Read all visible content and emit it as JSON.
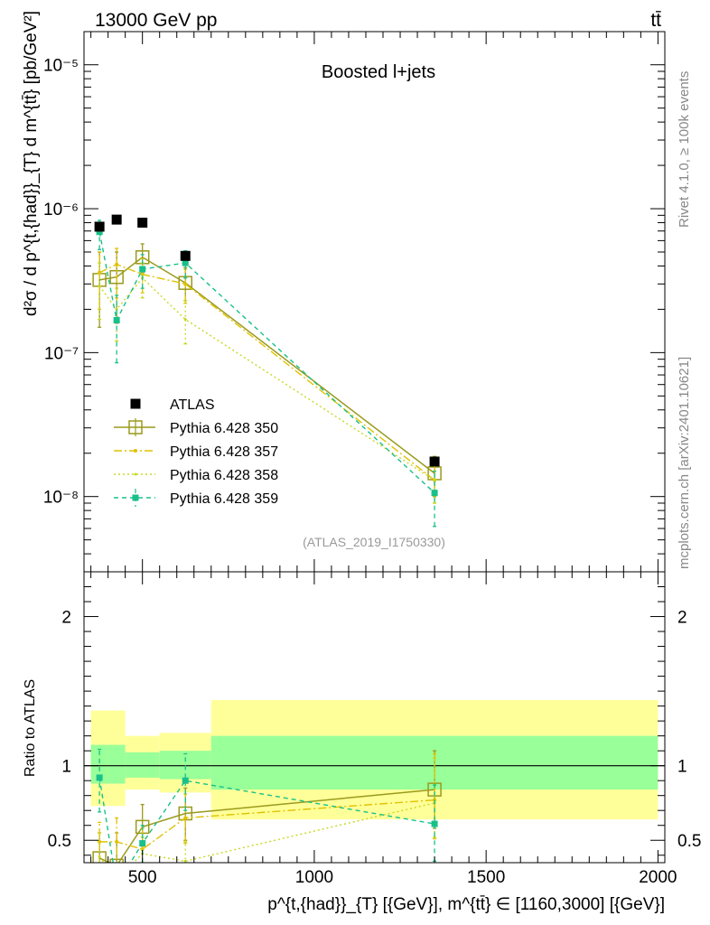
{
  "header": {
    "left": "13000 GeV pp",
    "right": "tt̄"
  },
  "side_labels": {
    "rivet": "Rivet 4.1.0, ≥ 100k events",
    "mcplots": "mcplots.cern.ch [arXiv:2401.10621]"
  },
  "colors": {
    "atlas": "#000000",
    "p350": "#9a9a1e",
    "p357": "#e0c200",
    "p358": "#c8d820",
    "p359": "#18c08a",
    "band_inner": "#99ff99",
    "band_outer": "#ffff99"
  },
  "chart_data": [
    {
      "type": "line",
      "title": "Boosted l+jets",
      "watermark": "(ATLAS_2019_I1750330)",
      "ylabel": "d²σ / d p^{t,{had}}_{T} d m^{tt̄} [pb/GeV²]",
      "yscale": "log",
      "ylim": [
        3e-09,
        1.7e-05
      ],
      "xlim": [
        330,
        2020
      ],
      "y_ticks": [
        {
          "value": 1e-08,
          "label": "10⁻⁸"
        },
        {
          "value": 1e-07,
          "label": "10⁻⁷"
        },
        {
          "value": 1e-06,
          "label": "10⁻⁶"
        },
        {
          "value": 1e-05,
          "label": "10⁻⁵"
        }
      ],
      "legend_position": "bottom-left",
      "series": [
        {
          "name": "ATLAS",
          "style": "data",
          "x": [
            375,
            425,
            500,
            625,
            1350
          ],
          "y": [
            7.5e-07,
            8.4e-07,
            8e-07,
            4.7e-07,
            1.75e-08
          ]
        },
        {
          "name": "Pythia 6.428 350",
          "style": "solid-open-square",
          "x": [
            375,
            425,
            500,
            625,
            1350
          ],
          "y": [
            3.2e-07,
            3.35e-07,
            4.6e-07,
            3.05e-07,
            1.45e-08
          ],
          "yerr_low": [
            1.5e-07,
            1.6e-07,
            3.6e-07,
            2.3e-07,
            1e-08
          ],
          "yerr_high": [
            5e-07,
            5e-07,
            5.7e-07,
            3.9e-07,
            1.9e-08
          ]
        },
        {
          "name": "Pythia 6.428 357",
          "style": "dashdot",
          "x": [
            375,
            425,
            500,
            625,
            1350
          ],
          "y": [
            3.6e-07,
            4.1e-07,
            3.5e-07,
            3e-07,
            1.3e-08
          ],
          "yerr_low": [
            2e-07,
            2.4e-07,
            2.6e-07,
            2.2e-07,
            9e-09
          ],
          "yerr_high": [
            5e-07,
            5.3e-07,
            4.5e-07,
            3.8e-07,
            1.8e-08
          ]
        },
        {
          "name": "Pythia 6.428 358",
          "style": "dotted",
          "x": [
            375,
            425,
            500,
            625,
            1350
          ],
          "y": [
            2.9e-07,
            2e-07,
            3.3e-07,
            1.7e-07,
            1.3e-08
          ],
          "yerr_low": [
            1.7e-07,
            1.2e-07,
            2.4e-07,
            1.15e-07,
            9e-09
          ],
          "yerr_high": [
            4.2e-07,
            2.8e-07,
            4.2e-07,
            2.3e-07,
            1.8e-08
          ]
        },
        {
          "name": "Pythia 6.428 359",
          "style": "dashed-filled-square",
          "x": [
            375,
            425,
            500,
            625,
            1350
          ],
          "y": [
            6.9e-07,
            1.68e-07,
            3.8e-07,
            4.2e-07,
            1.06e-08
          ],
          "yerr_low": [
            5.2e-07,
            8.5e-08,
            2.8e-07,
            3.3e-07,
            6.2e-09
          ],
          "yerr_high": [
            8.3e-07,
            2.5e-07,
            4.8e-07,
            5.1e-07,
            1.5e-08
          ]
        }
      ]
    },
    {
      "type": "line",
      "ylabel": "Ratio to ATLAS",
      "xlabel": "p^{t,{had}}_{T} [{GeV}], m^{tt̄} ∈ [1160,3000] [{GeV}]",
      "xlim": [
        330,
        2020
      ],
      "ylim": [
        0.35,
        2.3
      ],
      "x_ticks": [
        {
          "value": 500,
          "label": "500"
        },
        {
          "value": 1000,
          "label": "1000"
        },
        {
          "value": 1500,
          "label": "1500"
        },
        {
          "value": 2000,
          "label": "2000"
        }
      ],
      "y_ticks": [
        {
          "value": 0.5,
          "label": "0.5"
        },
        {
          "value": 1,
          "label": "1"
        },
        {
          "value": 2,
          "label": "2"
        }
      ],
      "uncertainty_bands": [
        {
          "x0": 350,
          "x1": 400,
          "inner": [
            0.88,
            1.14
          ],
          "outer": [
            0.73,
            1.37
          ]
        },
        {
          "x0": 400,
          "x1": 450,
          "inner": [
            0.88,
            1.14
          ],
          "outer": [
            0.73,
            1.37
          ]
        },
        {
          "x0": 450,
          "x1": 550,
          "inner": [
            0.92,
            1.09
          ],
          "outer": [
            0.84,
            1.2
          ]
        },
        {
          "x0": 550,
          "x1": 700,
          "inner": [
            0.91,
            1.1
          ],
          "outer": [
            0.82,
            1.22
          ]
        },
        {
          "x0": 700,
          "x1": 2000,
          "inner": [
            0.84,
            1.2
          ],
          "outer": [
            0.64,
            1.44
          ]
        }
      ],
      "series": [
        {
          "name": "Pythia 6.428 350",
          "x": [
            375,
            425,
            500,
            625,
            1350
          ],
          "y": [
            0.38,
            0.33,
            0.59,
            0.68,
            0.84
          ],
          "yerr_low": [
            0.33,
            0.3,
            0.46,
            0.5,
            0.58
          ],
          "yerr_high": [
            0.55,
            0.55,
            0.74,
            0.85,
            1.1
          ]
        },
        {
          "name": "Pythia 6.428 357",
          "x": [
            375,
            425,
            500,
            625,
            1350
          ],
          "y": [
            0.49,
            0.49,
            0.44,
            0.65,
            0.77
          ],
          "yerr_low": [
            0.32,
            0.3,
            0.33,
            0.48,
            0.51
          ],
          "yerr_high": [
            0.62,
            0.65,
            0.58,
            0.81,
            1.08
          ]
        },
        {
          "name": "Pythia 6.428 358",
          "x": [
            375,
            425,
            500,
            625,
            1350
          ],
          "y": [
            0.39,
            0.24,
            0.41,
            0.36,
            0.75
          ],
          "yerr_low": [
            0.3,
            0.16,
            0.31,
            0.25,
            0.52
          ],
          "yerr_high": [
            0.55,
            0.33,
            0.52,
            0.49,
            1.05
          ]
        },
        {
          "name": "Pythia 6.428 359",
          "x": [
            375,
            425,
            500,
            625,
            1350
          ],
          "y": [
            0.92,
            0.2,
            0.48,
            0.9,
            0.61
          ],
          "yerr_low": [
            0.69,
            0.1,
            0.35,
            0.7,
            0.36
          ],
          "yerr_high": [
            1.11,
            0.3,
            0.6,
            1.08,
            0.87
          ]
        }
      ]
    }
  ]
}
